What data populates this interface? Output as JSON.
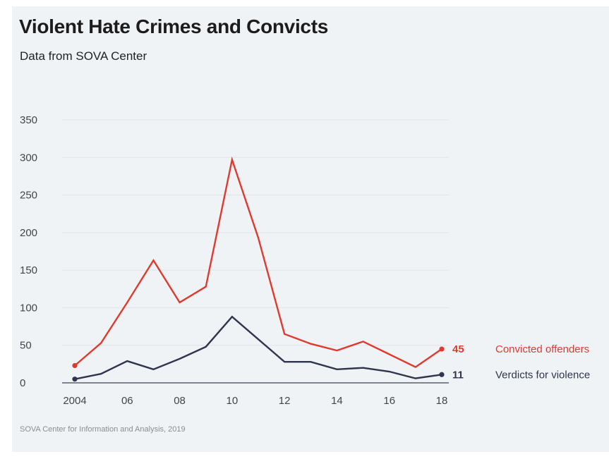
{
  "chart": {
    "title": "Violent Hate Crimes and Convicts",
    "subtitle": "Data from SOVA Center",
    "source": "SOVA Center for Information and Analysis, 2019"
  },
  "colors": {
    "convicted": "#e03a2f",
    "verdicts": "#30344d"
  },
  "chart_data": {
    "type": "line",
    "title": "Violent Hate Crimes and Convicts",
    "subtitle": "Data from SOVA Center",
    "xlabel": "",
    "ylabel": "",
    "x": [
      2004,
      2005,
      2006,
      2007,
      2008,
      2009,
      2010,
      2011,
      2012,
      2013,
      2014,
      2015,
      2016,
      2017,
      2018
    ],
    "x_tick_values": [
      2004,
      2006,
      2008,
      2010,
      2012,
      2014,
      2016,
      2018
    ],
    "x_tick_labels": [
      "2004",
      "06",
      "08",
      "10",
      "12",
      "14",
      "16",
      "18"
    ],
    "ylim": [
      0,
      350
    ],
    "y_ticks": [
      0,
      50,
      100,
      150,
      200,
      250,
      300,
      350
    ],
    "grid": true,
    "legend": "right",
    "series": [
      {
        "name": "Convicted offenders",
        "end_label": "45",
        "color": "#e03a2f",
        "values": [
          23,
          53,
          107,
          163,
          107,
          128,
          297,
          193,
          65,
          52,
          43,
          55,
          38,
          21,
          45
        ]
      },
      {
        "name": "Verdicts for violence",
        "end_label": "11",
        "color": "#30344d",
        "values": [
          5,
          12,
          29,
          18,
          32,
          48,
          88,
          58,
          28,
          28,
          18,
          20,
          15,
          6,
          11
        ]
      }
    ]
  }
}
